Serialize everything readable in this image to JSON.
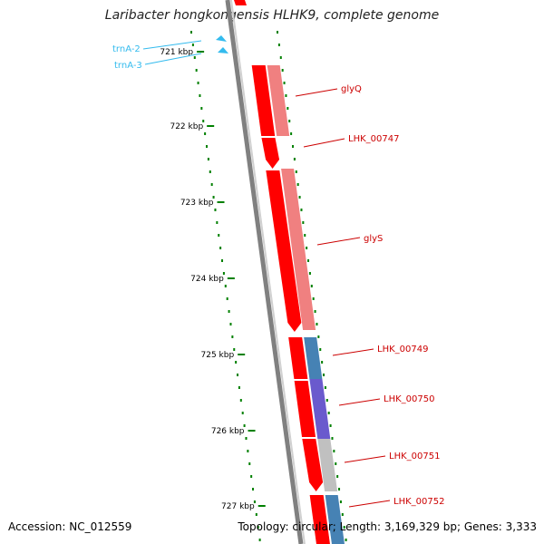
{
  "title": "Laribacter hongkongensis HLHK9, complete genome",
  "footer": {
    "accession": "Accession: NC_012559",
    "topology": "Topology: circular; Length: 3,169,329 bp; Genes: 3,333"
  },
  "colors": {
    "backbone": "#808080",
    "cds_forward": "#ff0000",
    "cds_shade": "#f08080",
    "trna": "#33bbee",
    "label": "#cc0000",
    "ticks": "#008000",
    "cog_blue": "#4682b4",
    "cog_purple": "#6a5acd",
    "cog_gray": "#c0c0c0"
  },
  "ticks": [
    "721 kbp",
    "722 kbp",
    "723 kbp",
    "724 kbp",
    "725 kbp",
    "726 kbp",
    "727 kbp"
  ],
  "trnas": [
    "trnA-2",
    "trnA-3"
  ],
  "genes": [
    {
      "label": "glyQ",
      "cog": "cog_shade"
    },
    {
      "label": "LHK_00747",
      "cog": "none"
    },
    {
      "label": "glyS",
      "cog": "cog_shade"
    },
    {
      "label": "LHK_00749",
      "cog": "cog_blue"
    },
    {
      "label": "LHK_00750",
      "cog": "cog_purple"
    },
    {
      "label": "LHK_00751",
      "cog": "cog_gray"
    },
    {
      "label": "LHK_00752",
      "cog": "cog_blue"
    }
  ]
}
